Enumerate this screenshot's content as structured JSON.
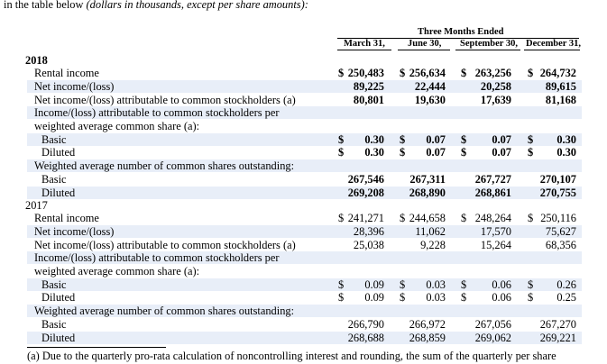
{
  "intro": {
    "prefix": "in the table below",
    "italic": "(dollars in thousands, except per share amounts):"
  },
  "header": {
    "group": "Three Months Ended",
    "columns": [
      "March 31,",
      "June 30,",
      "September 30,",
      "December 31,"
    ]
  },
  "years": [
    {
      "year": "2018",
      "rental_income": {
        "label": "Rental income",
        "values": [
          "250,483",
          "256,634",
          "263,256",
          "264,732"
        ]
      },
      "net_income": {
        "label": "Net income/(loss)",
        "values": [
          "89,225",
          "22,444",
          "20,258",
          "89,615"
        ]
      },
      "net_income_common": {
        "label": "Net income/(loss) attributable to common stockholders (a)",
        "values": [
          "80,801",
          "19,630",
          "17,639",
          "81,168"
        ]
      },
      "eps_heading_1": "Income/(loss) attributable to common stockholders per",
      "eps_heading_2": "weighted average common share (a):",
      "eps_basic": {
        "label": "Basic",
        "values": [
          "0.30",
          "0.07",
          "0.07",
          "0.30"
        ]
      },
      "eps_diluted": {
        "label": "Diluted",
        "values": [
          "0.30",
          "0.07",
          "0.07",
          "0.30"
        ]
      },
      "shares_heading": "Weighted average number of common shares outstanding:",
      "shares_basic": {
        "label": "Basic",
        "values": [
          "267,546",
          "267,311",
          "267,727",
          "270,107"
        ]
      },
      "shares_diluted": {
        "label": "Diluted",
        "values": [
          "269,208",
          "268,890",
          "268,861",
          "270,755"
        ]
      }
    },
    {
      "year": "2017",
      "rental_income": {
        "label": "Rental income",
        "values": [
          "241,271",
          "244,658",
          "248,264",
          "250,116"
        ]
      },
      "net_income": {
        "label": "Net income/(loss)",
        "values": [
          "28,396",
          "11,062",
          "17,570",
          "75,627"
        ]
      },
      "net_income_common": {
        "label": "Net income/(loss) attributable to common stockholders (a)",
        "values": [
          "25,038",
          "9,228",
          "15,264",
          "68,356"
        ]
      },
      "eps_heading_1": "Income/(loss) attributable to common stockholders per",
      "eps_heading_2": "weighted average common share (a):",
      "eps_basic": {
        "label": "Basic",
        "values": [
          "0.09",
          "0.03",
          "0.06",
          "0.26"
        ]
      },
      "eps_diluted": {
        "label": "Diluted",
        "values": [
          "0.09",
          "0.03",
          "0.06",
          "0.25"
        ]
      },
      "shares_heading": "Weighted average number of common shares outstanding:",
      "shares_basic": {
        "label": "Basic",
        "values": [
          "266,790",
          "266,972",
          "267,056",
          "267,270"
        ]
      },
      "shares_diluted": {
        "label": "Diluted",
        "values": [
          "268,688",
          "268,859",
          "269,062",
          "269,221"
        ]
      }
    }
  ],
  "currency_symbol": "$",
  "footnote": "(a) Due to the quarterly pro-rata calculation of noncontrolling interest and rounding, the sum of the quarterly per share",
  "colors": {
    "row_shade": "#e8eef8"
  }
}
